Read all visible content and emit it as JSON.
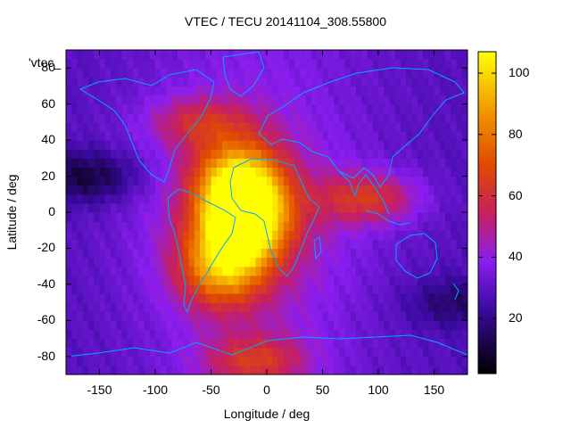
{
  "chart_data": {
    "type": "heatmap",
    "title": "VTEC / TECU 20141104_308.55800",
    "xlabel": "Longitude / deg",
    "ylabel": "Latitude / deg",
    "legend_key": "'vtec_",
    "xlim": [
      -180,
      180
    ],
    "ylim": [
      -90,
      90
    ],
    "x_ticks": [
      -150,
      -100,
      -50,
      0,
      50,
      100,
      150
    ],
    "y_ticks": [
      -80,
      -60,
      -40,
      -20,
      0,
      20,
      40,
      60,
      80
    ],
    "colorbar": {
      "min": 2,
      "max": 107,
      "ticks": [
        20,
        40,
        60,
        80,
        100
      ]
    },
    "grid": false,
    "features": [
      {
        "name": "equatorial-anomaly-core",
        "lon": -20,
        "lat": -5,
        "value": 100
      },
      {
        "name": "north-crest",
        "lon": -25,
        "lat": 18,
        "value": 84
      },
      {
        "name": "south-crest",
        "lon": -40,
        "lat": -30,
        "value": 75
      },
      {
        "name": "indian-ocean-tail",
        "lon": 90,
        "lat": 8,
        "value": 58
      },
      {
        "name": "north-atlantic-arm",
        "lon": -60,
        "lat": 50,
        "value": 50
      },
      {
        "name": "antarctic-patch",
        "lon": -10,
        "lat": -82,
        "value": 55
      },
      {
        "name": "night-side-low",
        "lon": -160,
        "lat": 20,
        "value": 8
      },
      {
        "name": "far-east-low",
        "lon": 170,
        "lat": -50,
        "value": 15
      }
    ]
  }
}
